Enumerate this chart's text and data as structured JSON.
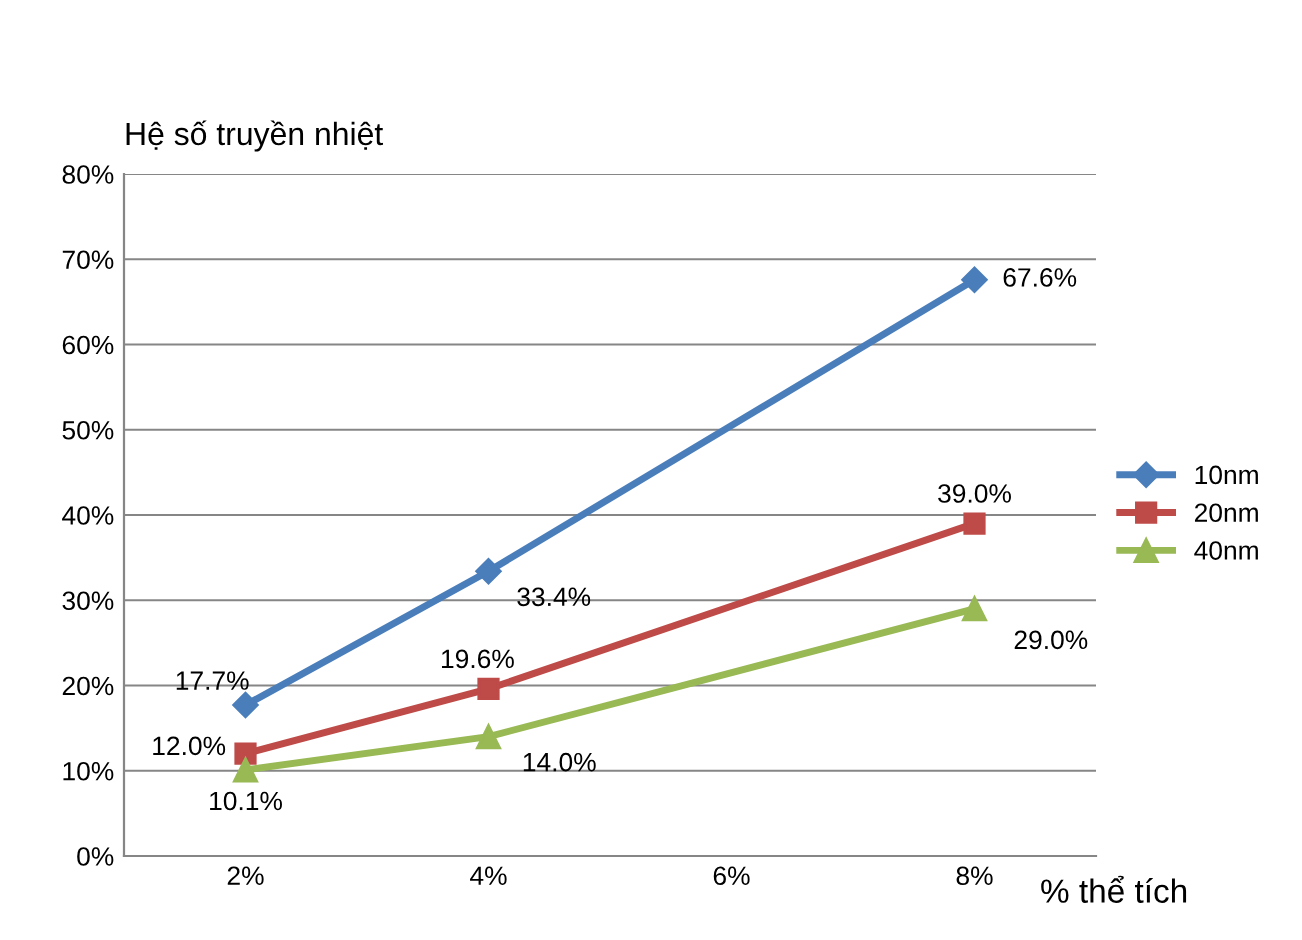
{
  "chart_data": {
    "type": "line",
    "ylabel": "Hệ số truyền nhiệt",
    "xlabel": "% thể tích",
    "xlim": [
      1,
      9
    ],
    "xticks": [
      {
        "value": 2,
        "label": "2%"
      },
      {
        "value": 4,
        "label": "4%"
      },
      {
        "value": 6,
        "label": "6%"
      },
      {
        "value": 8,
        "label": "8%"
      }
    ],
    "ylim": [
      0,
      80
    ],
    "yticks": [
      {
        "value": 0,
        "label": "0%"
      },
      {
        "value": 10,
        "label": "10%"
      },
      {
        "value": 20,
        "label": "20%"
      },
      {
        "value": 30,
        "label": "30%"
      },
      {
        "value": 40,
        "label": "40%"
      },
      {
        "value": 50,
        "label": "50%"
      },
      {
        "value": 60,
        "label": "60%"
      },
      {
        "value": 70,
        "label": "70%"
      },
      {
        "value": 80,
        "label": "80%"
      }
    ],
    "grid": "y",
    "legend": "right",
    "series": [
      {
        "name": "10nm",
        "color": "#4a7ebb",
        "marker": "diamond",
        "x": [
          2,
          4,
          8
        ],
        "values": [
          17.7,
          33.4,
          67.6
        ],
        "value_labels": [
          "17.7%",
          "33.4%",
          "67.6%"
        ]
      },
      {
        "name": "20nm",
        "color": "#be4b48",
        "marker": "square",
        "x": [
          2,
          4,
          8
        ],
        "values": [
          12.0,
          19.6,
          39.0
        ],
        "value_labels": [
          "12.0%",
          "19.6%",
          "39.0%"
        ]
      },
      {
        "name": "40nm",
        "color": "#98b954",
        "marker": "triangle",
        "x": [
          2,
          4,
          8
        ],
        "values": [
          10.1,
          14.0,
          29.0
        ],
        "value_labels": [
          "10.1%",
          "14.0%",
          "29.0%"
        ]
      }
    ]
  }
}
